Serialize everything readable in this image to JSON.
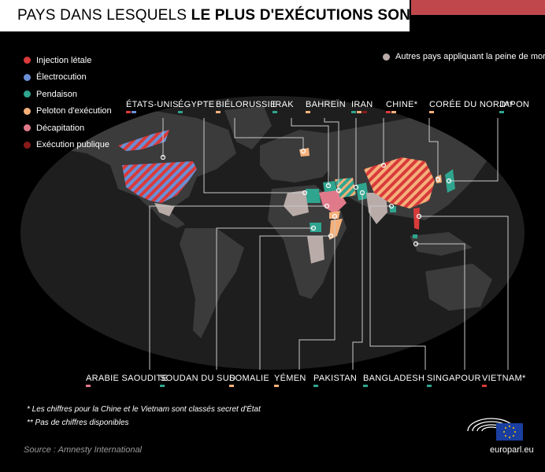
{
  "title": {
    "light": "PAYS DANS LESQUELS",
    "bold": "LE PLUS D'EXÉCUTIONS SONT RECENSÉES"
  },
  "colors": {
    "injection": "#d93a3a",
    "electrocution": "#6a8fd6",
    "pendaison": "#2fa58f",
    "peloton": "#f5b07a",
    "decapitation": "#e07a8a",
    "publique": "#8a1a1a",
    "other": "#b8aba8",
    "land": "#3b3b3b"
  },
  "legend": [
    {
      "label": "Injection létale",
      "color": "#d93a3a"
    },
    {
      "label": "Électrocution",
      "color": "#6a8fd6"
    },
    {
      "label": "Pendaison",
      "color": "#2fa58f"
    },
    {
      "label": "Peloton d'exécution",
      "color": "#f5b07a"
    },
    {
      "label": "Décapitation",
      "color": "#e07a8a"
    },
    {
      "label": "Exécution publique",
      "color": "#8a1a1a"
    }
  ],
  "other_legend": "Autres pays appliquant la peine de mort",
  "top_countries": [
    {
      "name": "ÉTATS-UNIS",
      "marks": [
        "#d93a3a",
        "#6a8fd6"
      ]
    },
    {
      "name": "ÉGYPTE",
      "marks": [
        "#2fa58f"
      ]
    },
    {
      "name": "BIÉLORUSSIE",
      "marks": [
        "#f5b07a"
      ]
    },
    {
      "name": "IRAK",
      "marks": [
        "#2fa58f"
      ]
    },
    {
      "name": "BAHREÏN",
      "marks": [
        "#f5b07a"
      ]
    },
    {
      "name": "IRAN",
      "marks": [
        "#2fa58f",
        "#f5b07a",
        "#8a1a1a"
      ]
    },
    {
      "name": "CHINE*",
      "marks": [
        "#d93a3a",
        "#f5b07a"
      ]
    },
    {
      "name": "CORÉE DU NORD**",
      "marks": [
        "#f5b07a"
      ]
    },
    {
      "name": "JAPON",
      "marks": [
        "#2fa58f"
      ]
    }
  ],
  "bottom_countries": [
    {
      "name": "ARABIE SAOUDITE",
      "marks": [
        "#e07a8a"
      ]
    },
    {
      "name": "SOUDAN DU SUD",
      "marks": [
        "#2fa58f"
      ]
    },
    {
      "name": "SOMALIE",
      "marks": [
        "#f5b07a"
      ]
    },
    {
      "name": "YÉMEN",
      "marks": [
        "#f5b07a"
      ]
    },
    {
      "name": "PAKISTAN",
      "marks": [
        "#2fa58f"
      ]
    },
    {
      "name": "BANGLADESH",
      "marks": [
        "#2fa58f"
      ]
    },
    {
      "name": "SINGAPOUR",
      "marks": [
        "#2fa58f"
      ]
    },
    {
      "name": "VIETNAM*",
      "marks": [
        "#d93a3a"
      ]
    }
  ],
  "notes": [
    "*  Les chiffres pour la Chine et le Vietnam sont classés secret d'État",
    "**  Pas de chiffres disponibles"
  ],
  "source": "Source : Amnesty International",
  "site": "europarl.eu"
}
